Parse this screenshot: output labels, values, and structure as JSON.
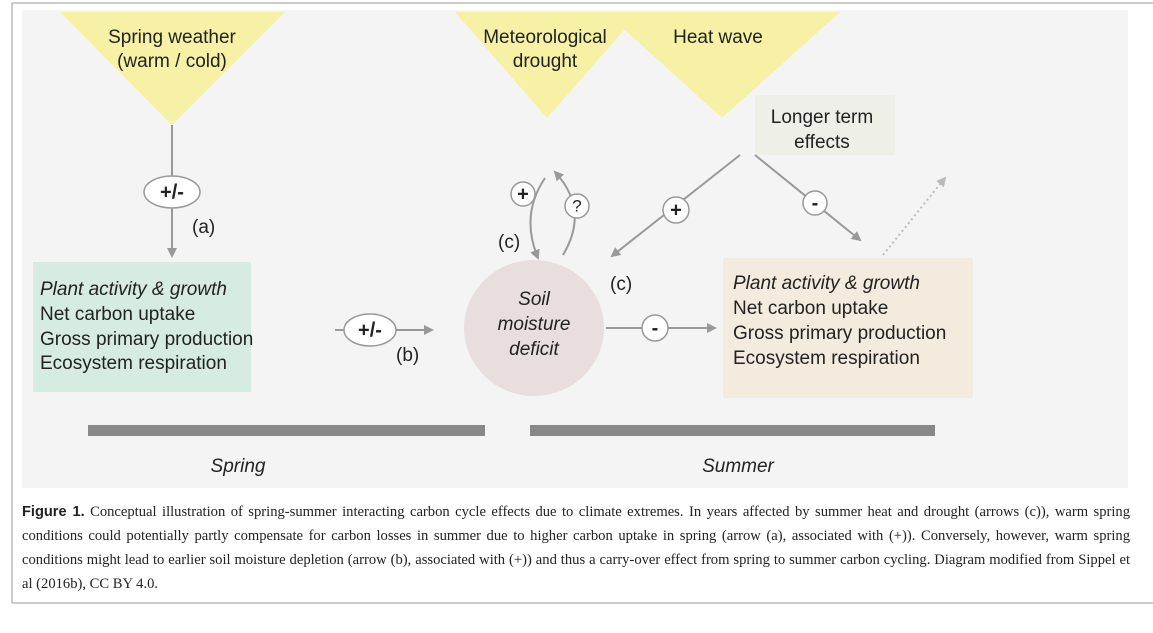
{
  "nodes": {
    "spring_weather": [
      "Spring weather",
      "(warm / cold)"
    ],
    "drought": [
      "Meteorological",
      "drought"
    ],
    "heat_wave": "Heat wave",
    "longer_term": [
      "Longer term",
      "effects"
    ],
    "soil": [
      "Soil",
      "moisture",
      "deficit"
    ]
  },
  "boxes": {
    "spring": [
      "Plant activity & growth",
      "Net carbon uptake",
      "Gross primary production",
      "Ecosystem respiration"
    ],
    "summer": [
      "Plant activity & growth",
      "Net carbon uptake",
      "Gross primary production",
      "Ecosystem respiration"
    ]
  },
  "signs": {
    "a": "+/-",
    "b": "+/-",
    "drought_soil": "+",
    "soil_drought": "?",
    "heat_soil": "+",
    "heat_summer": "-",
    "soil_summer": "-"
  },
  "arrow_labels": {
    "a": "(a)",
    "b": "(b)",
    "c1": "(c)",
    "c2": "(c)"
  },
  "seasons": [
    "Spring",
    "Summer"
  ],
  "caption": {
    "label": "Figure 1.",
    "text": "Conceptual illustration of spring-summer interacting carbon cycle effects due to climate extremes. In years affected by summer heat and drought (arrows (c)), warm spring conditions could potentially partly compensate for carbon losses in summer due to higher carbon uptake in spring (arrow (a), associated with (+)). Conversely, however, warm spring conditions might lead to earlier soil moisture depletion (arrow (b), associated with (+)) and thus a carry-over effect from spring to summer carbon cycling. Diagram modified from Sippel et al (2016b), CC BY 4.0."
  }
}
